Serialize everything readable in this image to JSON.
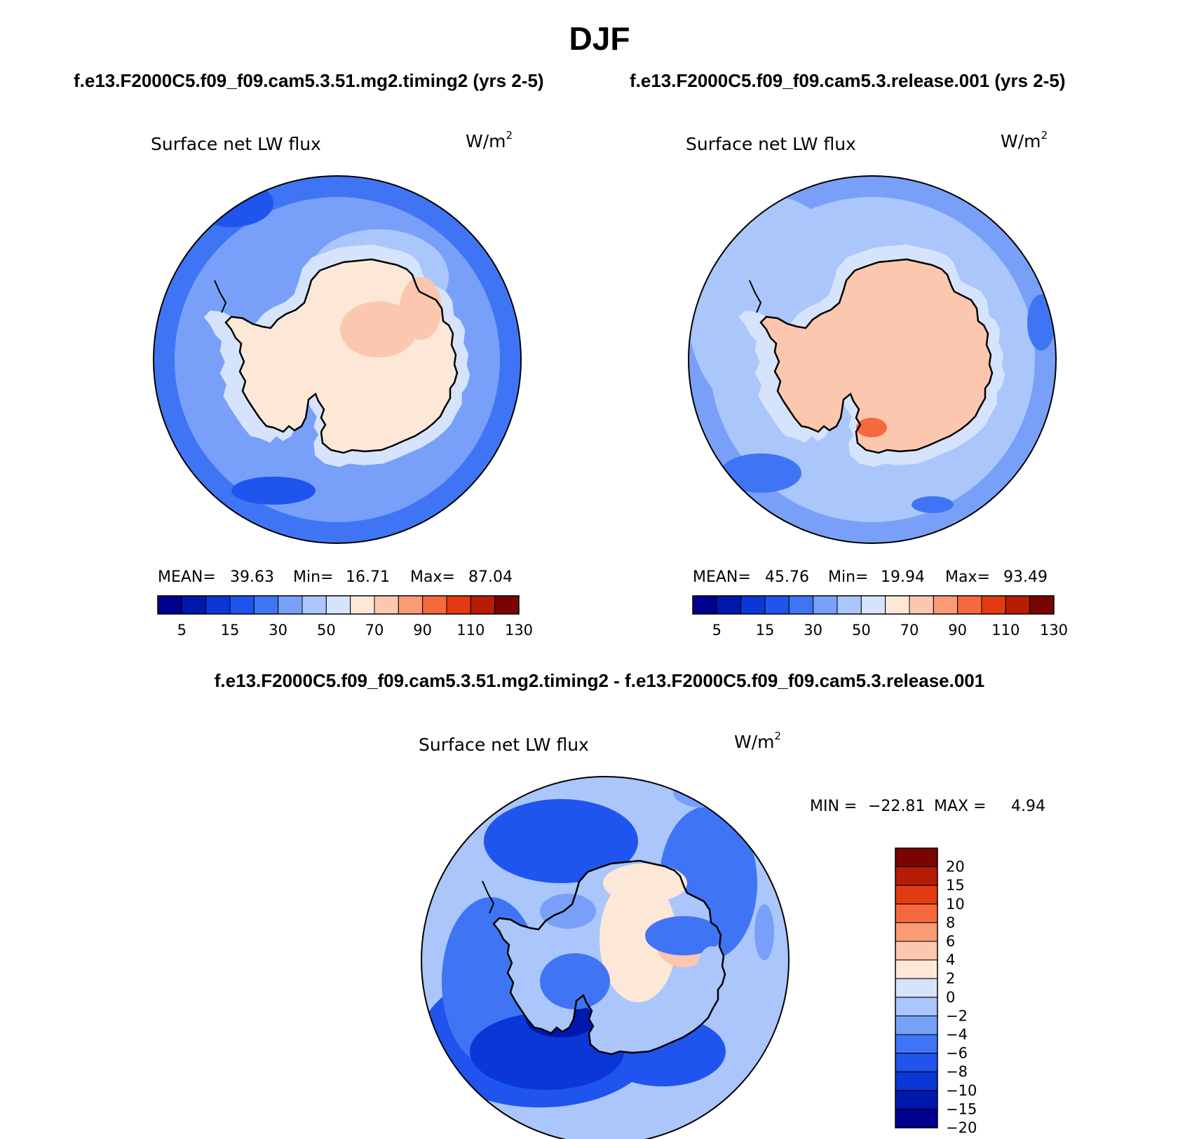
{
  "figure": {
    "title": "DJF",
    "case_a_title": "f.e13.F2000C5.f09_f09.cam5.3.51.mg2.timing2 (yrs 2-5)",
    "case_b_title": "f.e13.F2000C5.f09_f09.cam5.3.release.001 (yrs 2-5)",
    "diff_title": "f.e13.F2000C5.f09_f09.cam5.3.51.mg2.timing2 - f.e13.F2000C5.f09_f09.cam5.3.release.001"
  },
  "chart_data": [
    {
      "type": "map",
      "projection": "south-polar-stereographic",
      "title": "Surface net LW flux",
      "units": "W/m",
      "units_exponent": "2",
      "stats": {
        "mean_label": "MEAN=",
        "mean": "39.63",
        "min_label": "Min=",
        "min": "16.71",
        "max_label": "Max=",
        "max": "87.04"
      },
      "colorbar": {
        "levels": [
          5,
          10,
          15,
          20,
          30,
          40,
          50,
          60,
          70,
          80,
          90,
          100,
          110,
          120,
          130
        ],
        "tick_labels": [
          "5",
          "15",
          "30",
          "50",
          "70",
          "90",
          "110",
          "130"
        ],
        "colors": [
          "#00008f",
          "#0017ae",
          "#0a37d6",
          "#1f55ee",
          "#3f75f5",
          "#78a0f9",
          "#aac6fb",
          "#d5e4fc",
          "#fde8d8",
          "#fbc7ae",
          "#f99b74",
          "#f6693c",
          "#e43a12",
          "#b71c05",
          "#7a0400"
        ]
      },
      "field_summary": {
        "ocean_far": 25,
        "ocean_mid": 35,
        "coast_ring": 45,
        "ice_sheet": 65
      }
    },
    {
      "type": "map",
      "projection": "south-polar-stereographic",
      "title": "Surface net LW flux",
      "units": "W/m",
      "units_exponent": "2",
      "stats": {
        "mean_label": "MEAN=",
        "mean": "45.76",
        "min_label": "Min=",
        "min": "19.94",
        "max_label": "Max=",
        "max": "93.49"
      },
      "colorbar": {
        "levels": [
          5,
          10,
          15,
          20,
          30,
          40,
          50,
          60,
          70,
          80,
          90,
          100,
          110,
          120,
          130
        ],
        "tick_labels": [
          "5",
          "15",
          "30",
          "50",
          "70",
          "90",
          "110",
          "130"
        ],
        "colors": [
          "#00008f",
          "#0017ae",
          "#0a37d6",
          "#1f55ee",
          "#3f75f5",
          "#78a0f9",
          "#aac6fb",
          "#d5e4fc",
          "#fde8d8",
          "#fbc7ae",
          "#f99b74",
          "#f6693c",
          "#e43a12",
          "#b71c05",
          "#7a0400"
        ]
      },
      "field_summary": {
        "ocean_far": 35,
        "ocean_mid": 42,
        "coast_ring": 55,
        "ice_sheet": 72
      }
    },
    {
      "type": "map",
      "projection": "south-polar-stereographic",
      "title": "Surface net LW flux",
      "units": "W/m",
      "units_exponent": "2",
      "stats": {
        "min_label": "MIN =",
        "min": "−22.81",
        "max_label": "MAX =",
        "max": "4.94"
      },
      "colorbar": {
        "levels": [
          -20,
          -15,
          -10,
          -8,
          -6,
          -4,
          -2,
          0,
          2,
          4,
          6,
          8,
          10,
          15,
          20
        ],
        "tick_labels": [
          "20",
          "15",
          "10",
          "8",
          "6",
          "4",
          "2",
          "0",
          "−2",
          "−4",
          "−6",
          "−8",
          "−10",
          "−15",
          "−20"
        ],
        "colors": [
          "#7a0400",
          "#b71c05",
          "#e43a12",
          "#f6693c",
          "#f99b74",
          "#fbc7ae",
          "#fde8d8",
          "#d5e4fc",
          "#aac6fb",
          "#78a0f9",
          "#3f75f5",
          "#1f55ee",
          "#0a37d6",
          "#0017ae",
          "#00008f"
        ]
      }
    }
  ]
}
